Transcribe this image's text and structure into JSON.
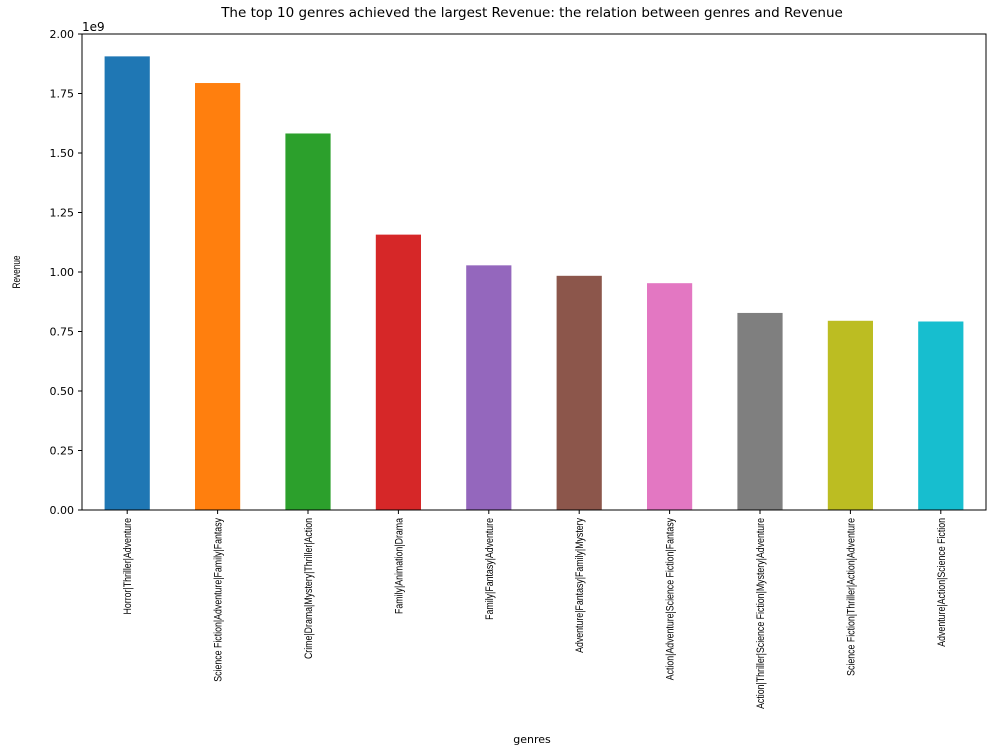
{
  "chart_data": {
    "type": "bar",
    "title": "The top 10 genres achieved the largest Revenue: the relation between genres and Revenue",
    "xlabel": "genres",
    "ylabel": "Revenue",
    "y_offset_label": "1e9",
    "y_scale": 1000000000,
    "ylim": [
      0,
      2.0
    ],
    "yticks": [
      "0.00",
      "0.25",
      "0.50",
      "0.75",
      "1.00",
      "1.25",
      "1.50",
      "1.75",
      "2.00"
    ],
    "grid": false,
    "legend": "none",
    "categories": [
      "Horror|Thriller|Adventure",
      "Science Fiction|Adventure|Family|Fantasy",
      "Crime|Drama|Mystery|Thriller|Action",
      "Family|Animation|Drama",
      "Family|Fantasy|Adventure",
      "Adventure|Fantasy|Family|Mystery",
      "Action|Adventure|Science Fiction|Fantasy",
      "Action|Thriller|Science Fiction|Mystery|Adventure",
      "Science Fiction|Thriller|Action|Adventure",
      "Adventure|Action|Science Fiction"
    ],
    "values": [
      1.906,
      1.794,
      1.582,
      1.157,
      1.028,
      0.984,
      0.953,
      0.828,
      0.795,
      0.792
    ],
    "colors": [
      "#1f77b4",
      "#ff7f0e",
      "#2ca02c",
      "#d62728",
      "#9467bd",
      "#8c564b",
      "#e377c2",
      "#7f7f7f",
      "#bcbd22",
      "#17becf"
    ]
  }
}
